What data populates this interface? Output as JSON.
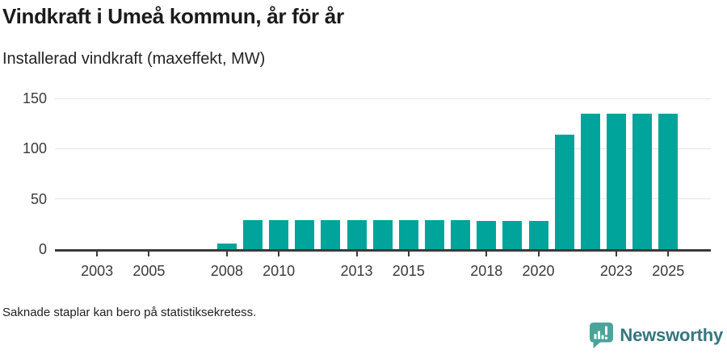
{
  "header": {
    "title": "Vindkraft i Umeå kommun, år för år",
    "subtitle": "Installerad vindkraft (maxeffekt, MW)"
  },
  "chart_data": {
    "type": "bar",
    "title": "Vindkraft i Umeå kommun, år för år",
    "ylabel": "Installerad vindkraft (maxeffekt, MW)",
    "xlabel": "",
    "x": [
      2002,
      2003,
      2004,
      2005,
      2006,
      2007,
      2008,
      2009,
      2010,
      2011,
      2012,
      2013,
      2014,
      2015,
      2016,
      2017,
      2018,
      2019,
      2020,
      2021,
      2022,
      2023,
      2024,
      2025
    ],
    "values": [
      null,
      null,
      null,
      null,
      null,
      null,
      6,
      29,
      29,
      29,
      29,
      29,
      29,
      29,
      29,
      29,
      28,
      28,
      28,
      114,
      135,
      135,
      135,
      135
    ],
    "xticks": [
      2003,
      2005,
      2008,
      2010,
      2013,
      2015,
      2018,
      2020,
      2023,
      2025
    ],
    "yticks": [
      0,
      50,
      100,
      150
    ],
    "ylim": [
      0,
      150
    ],
    "grid": true,
    "legend_position": "none",
    "colors": {
      "bar": "#00A49B",
      "axis": "#3A3A3A",
      "grid": "#E4E4E4",
      "tick_label": "#3A3A3A"
    }
  },
  "footer": {
    "note": "Saknade staplar kan bero på statistiksekretess."
  },
  "branding": {
    "name": "Newsworthy",
    "icon": "newsworthy-speech-bubble-chart-icon",
    "icon_color": "#4BA49C",
    "text_color": "#35767D"
  }
}
